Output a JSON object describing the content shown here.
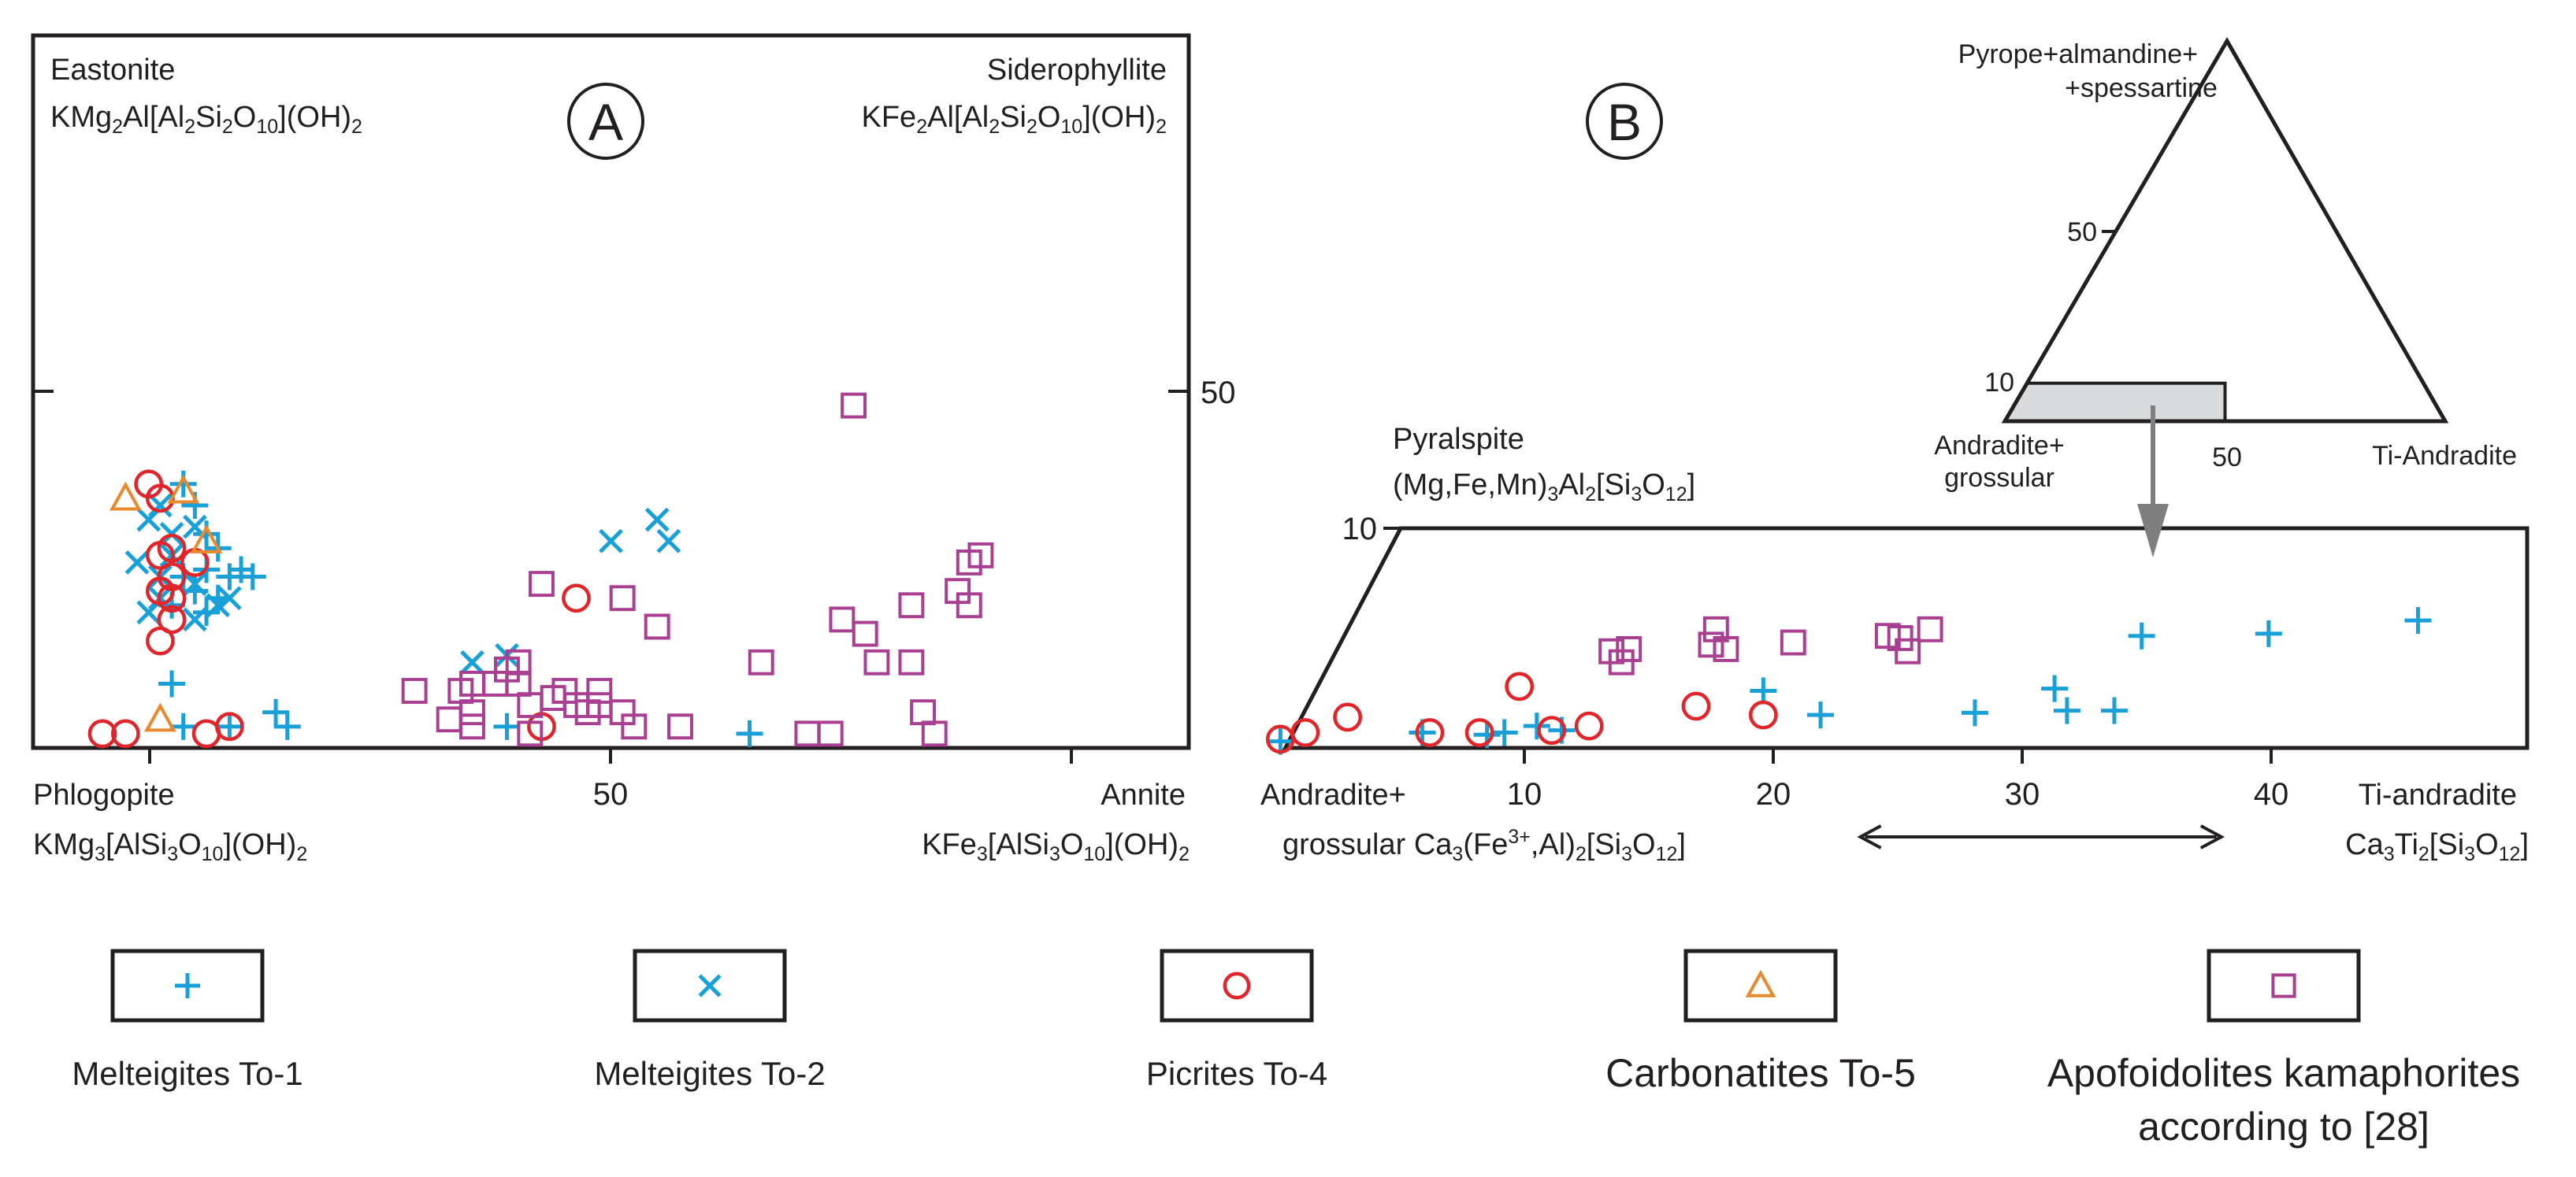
{
  "chart_data": [
    {
      "id": "A",
      "type": "scatter",
      "panel_label": "A",
      "corner_labels": {
        "top_left_name": "Eastonite",
        "top_left_formula": "KMg2Al[Al2Si2O10](OH)2",
        "top_right_name": "Siderophyllite",
        "top_right_formula": "KFe2Al[Al2Si2O10](OH)2",
        "bottom_left_name": "Phlogopite",
        "bottom_left_formula": "KMg3[AlSi3O10](OH)2",
        "bottom_right_name": "Annite",
        "bottom_right_formula": "KFe3[AlSi3O10](OH)2"
      },
      "xlim": [
        0,
        100
      ],
      "ylim": [
        0,
        100
      ],
      "x_ticks": [
        {
          "value": 50,
          "label": "50"
        }
      ],
      "x_minor_ticks": [
        25,
        75
      ],
      "y_ticks": [
        {
          "value": 50,
          "label": "50"
        }
      ],
      "series": [
        {
          "name": "Melteigites To-1",
          "marker": "plus",
          "points": [
            [
              13,
              37
            ],
            [
              14,
              34
            ],
            [
              15,
              30
            ],
            [
              16,
              28
            ],
            [
              18,
              25
            ],
            [
              15,
              25
            ],
            [
              13,
              24
            ],
            [
              17,
              24
            ],
            [
              19,
              24
            ],
            [
              12,
              20
            ],
            [
              14,
              22
            ],
            [
              16,
              21
            ],
            [
              15,
              19
            ],
            [
              12,
              9
            ],
            [
              13,
              3
            ],
            [
              17,
              3
            ],
            [
              22,
              3
            ],
            [
              21,
              5
            ],
            [
              41,
              3
            ],
            [
              62,
              2
            ]
          ]
        },
        {
          "name": "Melteigites To-2",
          "marker": "x",
          "points": [
            [
              11,
              34
            ],
            [
              10,
              32
            ],
            [
              14,
              31
            ],
            [
              12,
              30
            ],
            [
              9,
              26
            ],
            [
              12,
              27
            ],
            [
              11,
              24
            ],
            [
              14,
              23
            ],
            [
              11,
              21
            ],
            [
              16,
              20
            ],
            [
              17,
              21
            ],
            [
              10,
              19
            ],
            [
              14,
              18
            ],
            [
              38,
              12
            ],
            [
              41,
              13
            ],
            [
              54,
              32
            ],
            [
              55,
              29
            ],
            [
              50,
              29
            ]
          ]
        },
        {
          "name": "Picrites To-4",
          "marker": "circle",
          "points": [
            [
              10,
              37
            ],
            [
              11,
              35
            ],
            [
              12,
              28
            ],
            [
              11,
              27
            ],
            [
              14,
              26
            ],
            [
              12,
              24
            ],
            [
              11,
              22
            ],
            [
              12,
              21
            ],
            [
              12,
              18
            ],
            [
              11,
              15
            ],
            [
              47,
              21
            ],
            [
              15,
              2
            ],
            [
              17,
              3
            ],
            [
              6,
              2
            ],
            [
              8,
              2
            ],
            [
              44,
              3
            ]
          ]
        },
        {
          "name": "Carbonatites To-5",
          "marker": "triangle",
          "points": [
            [
              8,
              35
            ],
            [
              13,
              36
            ],
            [
              15,
              29
            ],
            [
              11,
              4
            ]
          ]
        },
        {
          "name": "Apofoidolites kamaphorites according to [28]",
          "marker": "square",
          "points": [
            [
              71,
              48
            ],
            [
              44,
              23
            ],
            [
              51,
              21
            ],
            [
              54,
              17
            ],
            [
              33,
              8
            ],
            [
              37,
              8
            ],
            [
              38,
              9
            ],
            [
              40,
              9
            ],
            [
              41,
              11
            ],
            [
              42,
              12
            ],
            [
              42,
              9
            ],
            [
              45,
              7
            ],
            [
              47,
              6
            ],
            [
              43,
              6
            ],
            [
              49,
              6
            ],
            [
              46,
              8
            ],
            [
              49,
              8
            ],
            [
              36,
              4
            ],
            [
              38,
              3
            ],
            [
              43,
              2
            ],
            [
              48,
              5
            ],
            [
              51,
              5
            ],
            [
              52,
              3
            ],
            [
              38,
              5
            ],
            [
              67,
              2
            ],
            [
              69,
              2
            ],
            [
              70,
              18
            ],
            [
              72,
              16
            ],
            [
              73,
              12
            ],
            [
              76,
              12
            ],
            [
              76,
              20
            ],
            [
              81,
              26
            ],
            [
              82,
              27
            ],
            [
              80,
              22
            ],
            [
              81,
              20
            ],
            [
              77,
              5
            ],
            [
              78,
              2
            ],
            [
              63,
              12
            ],
            [
              56,
              3
            ]
          ]
        }
      ]
    },
    {
      "id": "B",
      "type": "scatter",
      "panel_label": "B",
      "top_label_name": "Pyralspite",
      "top_label_formula": "(Mg,Fe,Mn)3Al2[Si3O12]",
      "bottom_left_name": "Andradite+",
      "bottom_left_formula": "grossular Ca3(Fe3+,Al)2[Si3O12]",
      "bottom_right_name": "Ti-andradite",
      "bottom_right_formula": "Ca3Ti2[Si3O12]",
      "xlim": [
        0,
        50
      ],
      "ylim": [
        0,
        10
      ],
      "x_ticks": [
        {
          "value": 10,
          "label": "10"
        },
        {
          "value": 20,
          "label": "20"
        },
        {
          "value": 30,
          "label": "30"
        },
        {
          "value": 40,
          "label": "40"
        }
      ],
      "y_ticks": [
        {
          "value": 10,
          "label": "10"
        }
      ],
      "arrow_range": [
        23.5,
        38
      ],
      "series": [
        {
          "name": "Melteigites To-1",
          "marker": "plus",
          "points": [
            [
              0.2,
              0.3
            ],
            [
              5.9,
              0.7
            ],
            [
              8.5,
              0.6
            ],
            [
              9.2,
              0.7
            ],
            [
              10.5,
              1
            ],
            [
              11.5,
              0.8
            ],
            [
              19.6,
              2.6
            ],
            [
              21.9,
              1.5
            ],
            [
              28.1,
              1.6
            ],
            [
              31.3,
              2.7
            ],
            [
              31.8,
              1.7
            ],
            [
              33.7,
              1.7
            ],
            [
              34.8,
              5.1
            ],
            [
              39.9,
              5.2
            ],
            [
              45.9,
              5.8
            ]
          ]
        },
        {
          "name": "Picrites To-4",
          "marker": "circle",
          "points": [
            [
              0.2,
              0.4
            ],
            [
              1.2,
              0.7
            ],
            [
              2.9,
              1.4
            ],
            [
              6.2,
              0.7
            ],
            [
              8.2,
              0.7
            ],
            [
              9.8,
              2.8
            ],
            [
              11.1,
              0.8
            ],
            [
              12.6,
              1
            ],
            [
              16.9,
              1.9
            ],
            [
              19.6,
              1.5
            ]
          ]
        },
        {
          "name": "Apofoidolites kamaphorites according to [28]",
          "marker": "square",
          "points": [
            [
              13.5,
              4.4
            ],
            [
              13.9,
              3.9
            ],
            [
              14.2,
              4.5
            ],
            [
              17.5,
              4.7
            ],
            [
              17.7,
              5.4
            ],
            [
              18.1,
              4.5
            ],
            [
              20.8,
              4.8
            ],
            [
              24.6,
              5.1
            ],
            [
              25.1,
              5
            ],
            [
              25.4,
              4.4
            ],
            [
              26.3,
              5.4
            ]
          ]
        }
      ],
      "inset": {
        "type": "ternary",
        "apex_label_line1": "Pyrope+almandine+",
        "apex_label_line2": "+spessartine",
        "left_label_line1": "Andradite+",
        "left_label_line2": "grossular",
        "right_label": "Ti-Andradite",
        "tick_50": "50",
        "tick_10": "10",
        "base_tick_50": "50",
        "shaded_region": {
          "ti_andradite_max": 50,
          "pyralspite_max": 10
        }
      }
    }
  ],
  "legend": [
    {
      "label": "Melteigites To-1",
      "marker": "plus"
    },
    {
      "label": "Melteigites To-2",
      "marker": "x"
    },
    {
      "label": "Picrites To-4",
      "marker": "circle"
    },
    {
      "label": "Carbonatites To-5",
      "marker": "triangle"
    },
    {
      "label": "Apofoidolites kamaphorites",
      "label_line2": "according to [28]",
      "marker": "square"
    }
  ],
  "colors": {
    "plus": "#1aa0d8",
    "x": "#1aa0d8",
    "circle": "#e0262b",
    "triangle": "#e8892e",
    "square": "#a83f91",
    "frame": "#231f20",
    "shade": "#d9dadb",
    "arrow_gray": "#7f7f7f"
  }
}
